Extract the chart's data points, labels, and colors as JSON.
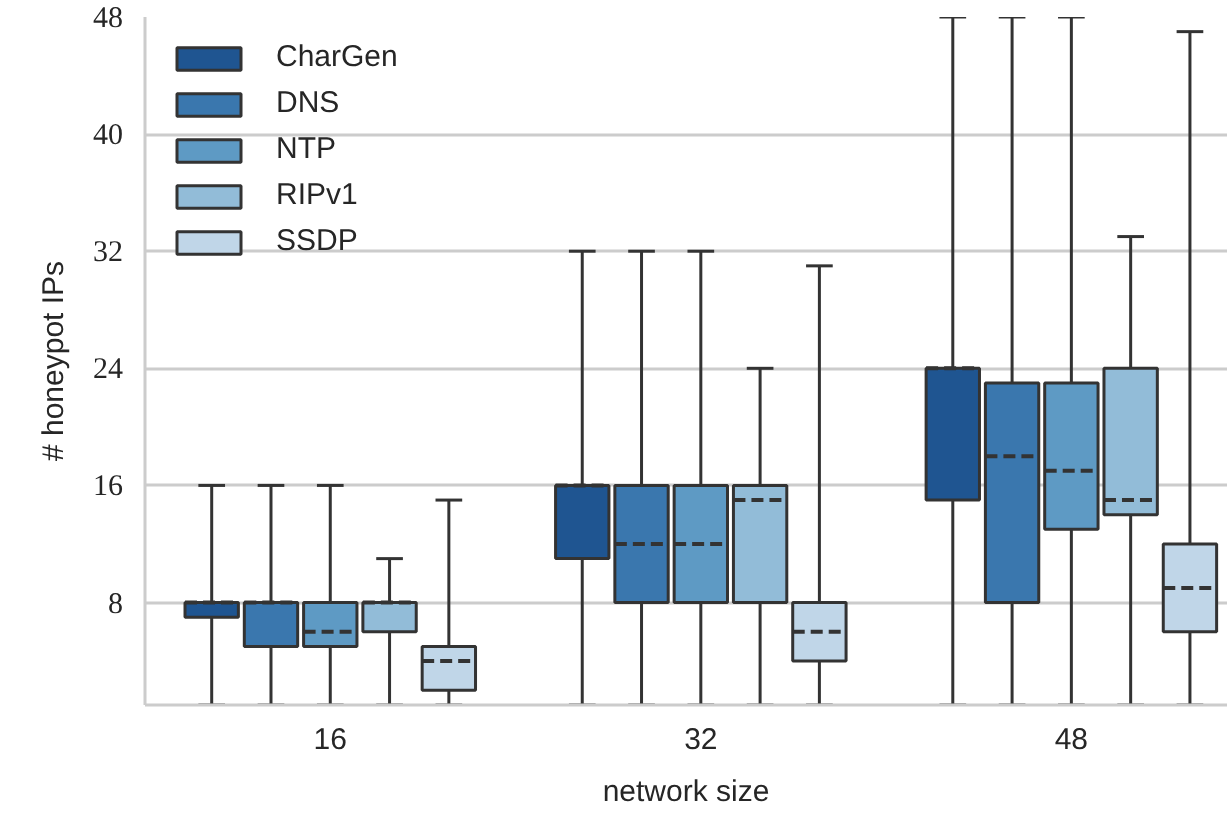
{
  "chart_data": {
    "type": "box",
    "xlabel": "network size",
    "ylabel": "# honeypot IPs",
    "categories": [
      "16",
      "32",
      "48"
    ],
    "ylim": [
      1,
      48
    ],
    "yticks": [
      8,
      16,
      24,
      32,
      40,
      48
    ],
    "grid": "y",
    "legend": "top left",
    "series": [
      {
        "name": "CharGen",
        "color": "#1f5591",
        "boxes": [
          {
            "low": 1,
            "q1": 7,
            "median": 8,
            "q3": 8,
            "high": 16
          },
          {
            "low": 1,
            "q1": 11,
            "median": 16,
            "q3": 16,
            "high": 32
          },
          {
            "low": 1,
            "q1": 15,
            "median": 24,
            "q3": 24,
            "high": 48
          }
        ]
      },
      {
        "name": "DNS",
        "color": "#3a77ae",
        "boxes": [
          {
            "low": 1,
            "q1": 5,
            "median": 8,
            "q3": 8,
            "high": 16
          },
          {
            "low": 1,
            "q1": 8,
            "median": 12,
            "q3": 16,
            "high": 32
          },
          {
            "low": 1,
            "q1": 8,
            "median": 18,
            "q3": 23,
            "high": 48
          }
        ]
      },
      {
        "name": "NTP",
        "color": "#5e9ac4",
        "boxes": [
          {
            "low": 1,
            "q1": 5,
            "median": 6,
            "q3": 8,
            "high": 16
          },
          {
            "low": 1,
            "q1": 8,
            "median": 12,
            "q3": 16,
            "high": 32
          },
          {
            "low": 1,
            "q1": 13,
            "median": 17,
            "q3": 23,
            "high": 48
          }
        ]
      },
      {
        "name": "RIPv1",
        "color": "#92bcd8",
        "boxes": [
          {
            "low": 1,
            "q1": 6,
            "median": 8,
            "q3": 8,
            "high": 11
          },
          {
            "low": 1,
            "q1": 8,
            "median": 15,
            "q3": 16,
            "high": 24
          },
          {
            "low": 1,
            "q1": 14,
            "median": 15,
            "q3": 24,
            "high": 33
          }
        ]
      },
      {
        "name": "SSDP",
        "color": "#c0d6e8",
        "boxes": [
          {
            "low": 1,
            "q1": 2,
            "median": 4,
            "q3": 5,
            "high": 15
          },
          {
            "low": 1,
            "q1": 4,
            "median": 6,
            "q3": 8,
            "high": 31
          },
          {
            "low": 1,
            "q1": 6,
            "median": 9,
            "q3": 12,
            "high": 47
          }
        ]
      }
    ]
  }
}
